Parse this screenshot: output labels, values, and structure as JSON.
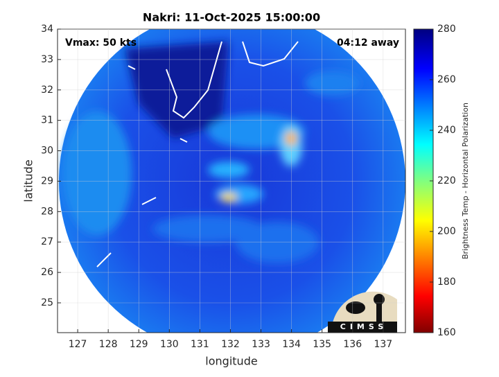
{
  "chart_data": {
    "type": "heatmap",
    "title": "Nakri: 11-Oct-2025 15:00:00",
    "xlabel": "longitude",
    "ylabel": "latitude",
    "xlim": [
      126.34,
      137.73
    ],
    "ylim": [
      24.02,
      34
    ],
    "xticks": [
      127,
      128,
      129,
      130,
      131,
      132,
      133,
      134,
      135,
      136,
      137
    ],
    "yticks": [
      25,
      26,
      27,
      28,
      29,
      30,
      31,
      32,
      33,
      34
    ],
    "grid": true,
    "annotations": [
      "Vmax: 50 kts",
      "04:12 away"
    ],
    "logo": "CIMSS",
    "colorbar": {
      "label": "Brightness Temp - Horizontal Polarization",
      "lim": [
        160,
        280
      ],
      "ticks": [
        160,
        180,
        200,
        220,
        240,
        260,
        280
      ]
    }
  }
}
